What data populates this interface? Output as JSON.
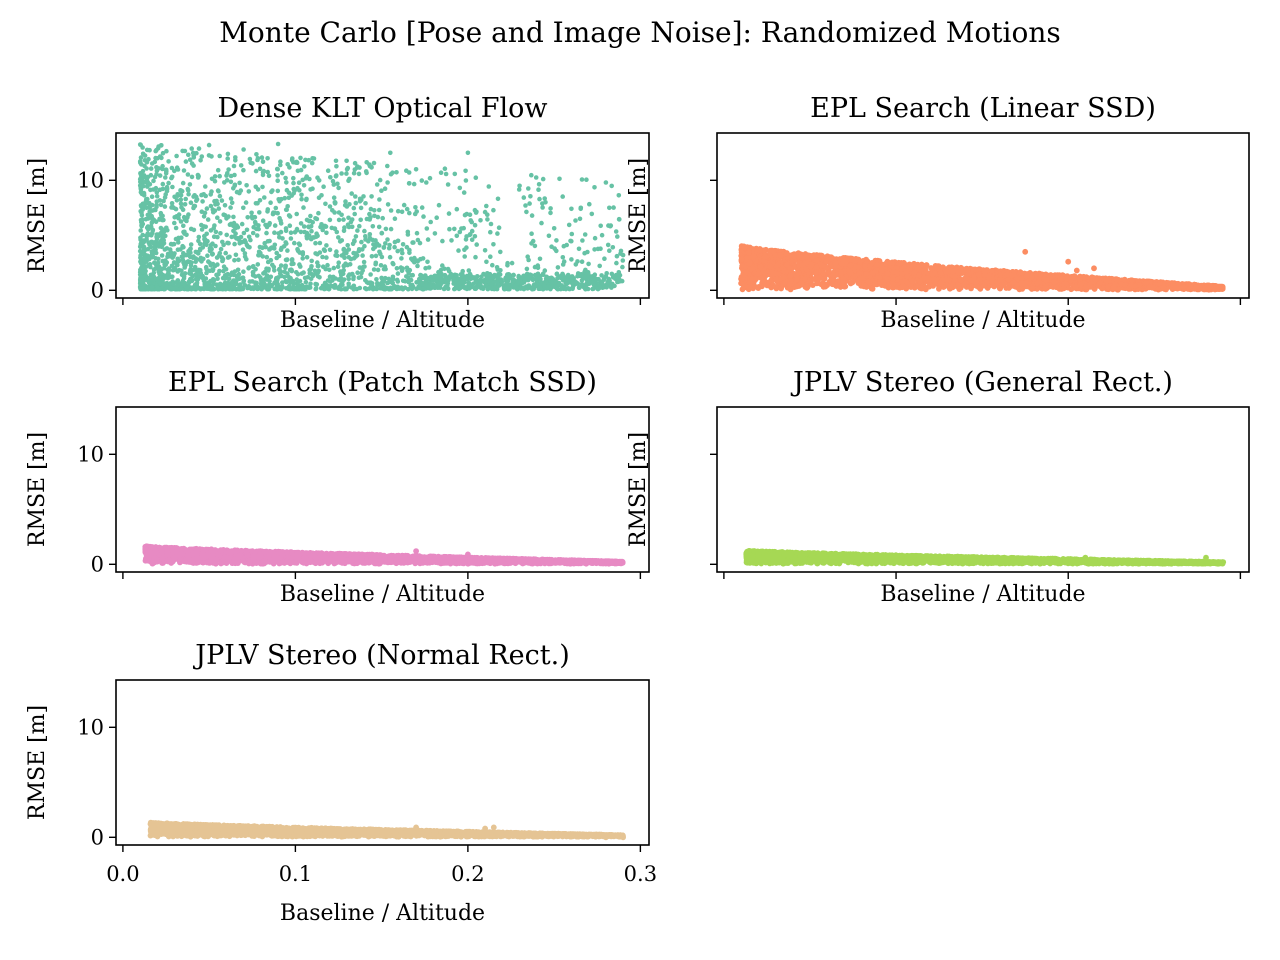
{
  "figure": {
    "suptitle": "Monte Carlo [Pose and Image Noise]: Randomized Motions"
  },
  "chart_data": [
    {
      "type": "scatter",
      "title": "Dense KLT Optical Flow",
      "xlabel": "Baseline / Altitude",
      "ylabel": "RMSE [m]",
      "xlim": [
        -0.004,
        0.305
      ],
      "ylim": [
        -0.7,
        14.3
      ],
      "xticks": [
        0.0,
        0.1,
        0.2,
        0.3
      ],
      "yticks": [
        0,
        10
      ],
      "xticklabels_visible": false,
      "yticklabels_visible": true,
      "color": "#66c2a5",
      "x_range": [
        0.01,
        0.29
      ],
      "noise_model": {
        "y_max_at_start": 13.5,
        "y_max_at_end": 10.0,
        "y_min": 0.1,
        "density_peak_x": 0.08
      },
      "points": [
        [
          0.013,
          10.3
        ],
        [
          0.02,
          12.0
        ],
        [
          0.03,
          8.5
        ],
        [
          0.05,
          13.2
        ],
        [
          0.07,
          12.8
        ],
        [
          0.09,
          13.3
        ],
        [
          0.11,
          12.0
        ],
        [
          0.13,
          11.0
        ],
        [
          0.155,
          12.5
        ],
        [
          0.17,
          11.0
        ],
        [
          0.2,
          12.5
        ],
        [
          0.23,
          9.5
        ],
        [
          0.245,
          8.0
        ],
        [
          0.265,
          6.5
        ],
        [
          0.28,
          9.8
        ],
        [
          0.282,
          7.5
        ],
        [
          0.29,
          3.2
        ],
        [
          0.285,
          0.4
        ],
        [
          0.27,
          2.4
        ],
        [
          0.255,
          3.0
        ]
      ]
    },
    {
      "type": "scatter",
      "title": "EPL Search (Linear SSD)",
      "xlabel": "Baseline / Altitude",
      "ylabel": "RMSE [m]",
      "xlim": [
        -0.004,
        0.305
      ],
      "ylim": [
        -0.7,
        14.3
      ],
      "xticks": [
        0.0,
        0.1,
        0.2,
        0.3
      ],
      "yticks": [
        0,
        10
      ],
      "xticklabels_visible": false,
      "yticklabels_visible": false,
      "color": "#fc8d62",
      "x_range": [
        0.01,
        0.29
      ],
      "noise_model": {
        "y_max_at_start": 4.0,
        "y_max_at_end": 0.3,
        "y_min": 0.05
      },
      "points": [
        [
          0.012,
          3.9
        ],
        [
          0.175,
          3.5
        ],
        [
          0.2,
          2.6
        ],
        [
          0.215,
          2.0
        ],
        [
          0.205,
          1.8
        ],
        [
          0.012,
          0.4
        ],
        [
          0.02,
          0.2
        ],
        [
          0.03,
          0.3
        ]
      ]
    },
    {
      "type": "scatter",
      "title": "EPL Search (Patch Match SSD)",
      "xlabel": "Baseline / Altitude",
      "ylabel": "RMSE [m]",
      "xlim": [
        -0.004,
        0.305
      ],
      "ylim": [
        -0.7,
        14.3
      ],
      "xticks": [
        0.0,
        0.1,
        0.2,
        0.3
      ],
      "yticks": [
        0,
        10
      ],
      "xticklabels_visible": false,
      "yticklabels_visible": true,
      "color": "#e78ac3",
      "x_range": [
        0.013,
        0.29
      ],
      "noise_model": {
        "y_max_at_start": 1.6,
        "y_max_at_end": 0.2,
        "y_min": 0.05
      },
      "points": [
        [
          0.013,
          1.4
        ],
        [
          0.015,
          1.1
        ],
        [
          0.17,
          1.2
        ],
        [
          0.2,
          0.9
        ],
        [
          0.285,
          0.1
        ]
      ]
    },
    {
      "type": "scatter",
      "title": "JPLV Stereo (General Rect.)",
      "xlabel": "Baseline / Altitude",
      "ylabel": "RMSE [m]",
      "xlim": [
        -0.004,
        0.305
      ],
      "ylim": [
        -0.7,
        14.3
      ],
      "xticks": [
        0.0,
        0.1,
        0.2,
        0.3
      ],
      "yticks": [
        0,
        10
      ],
      "xticklabels_visible": false,
      "yticklabels_visible": false,
      "color": "#a6d854",
      "x_range": [
        0.013,
        0.29
      ],
      "noise_model": {
        "y_max_at_start": 1.2,
        "y_max_at_end": 0.15,
        "y_min": 0.05
      },
      "points": [
        [
          0.013,
          1.0
        ],
        [
          0.02,
          1.1
        ],
        [
          0.21,
          0.6
        ],
        [
          0.28,
          0.6
        ],
        [
          0.29,
          0.2
        ]
      ]
    },
    {
      "type": "scatter",
      "title": "JPLV Stereo (Normal Rect.)",
      "xlabel": "Baseline / Altitude",
      "ylabel": "RMSE [m]",
      "xlim": [
        -0.004,
        0.305
      ],
      "ylim": [
        -0.7,
        14.3
      ],
      "xticks": [
        0.0,
        0.1,
        0.2,
        0.3
      ],
      "yticks": [
        0,
        10
      ],
      "xticklabels": [
        "0.0",
        "0.1",
        "0.2",
        "0.3"
      ],
      "xticklabels_visible": true,
      "yticklabels_visible": true,
      "color": "#e5c494",
      "x_range": [
        0.016,
        0.29
      ],
      "noise_model": {
        "y_max_at_start": 1.3,
        "y_max_at_end": 0.15,
        "y_min": 0.05
      },
      "points": [
        [
          0.016,
          1.2
        ],
        [
          0.17,
          0.9
        ],
        [
          0.21,
          0.8
        ],
        [
          0.215,
          0.9
        ],
        [
          0.28,
          0.0
        ],
        [
          0.29,
          0.0
        ]
      ]
    }
  ]
}
